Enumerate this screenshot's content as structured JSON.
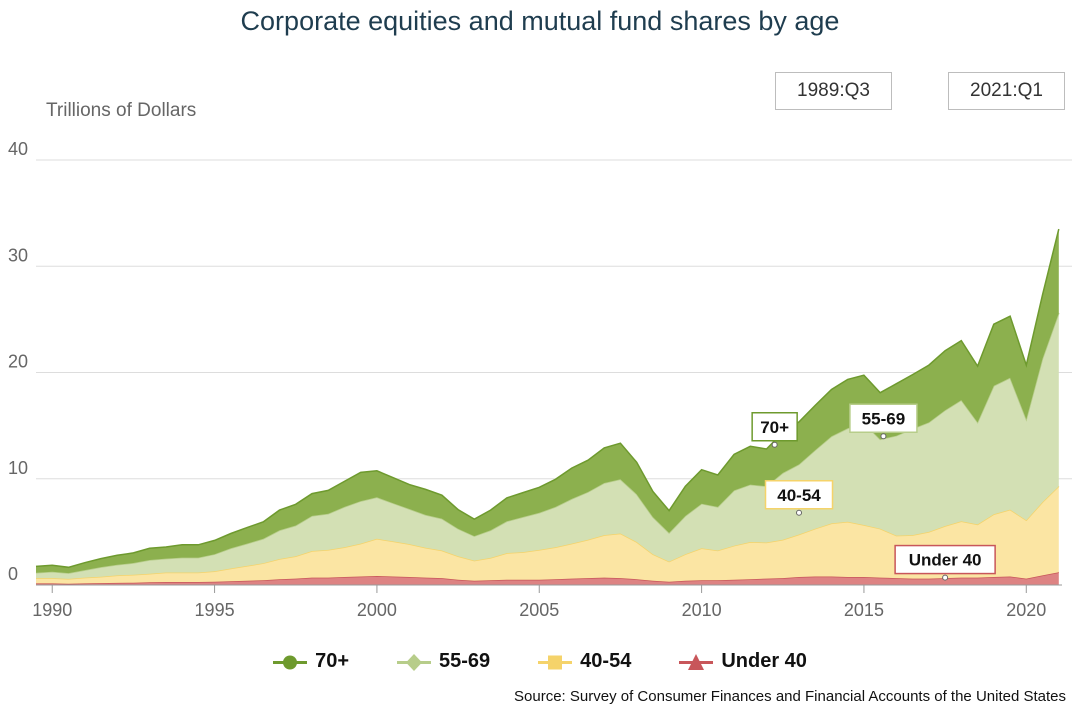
{
  "title": "Corporate equities and mutual fund shares by age",
  "range_buttons": [
    "1989:Q3",
    "2021:Q1"
  ],
  "source": "Source: Survey of Consumer Finances and Financial Accounts of the United States",
  "chart_data": {
    "type": "area",
    "stacked": true,
    "ylabel": "Trillions of Dollars",
    "ylim": [
      0,
      40
    ],
    "yticks": [
      0,
      10,
      20,
      30,
      40
    ],
    "xlim": [
      1989.5,
      2021.1
    ],
    "xticks": [
      1990,
      1995,
      2000,
      2005,
      2010,
      2015,
      2020
    ],
    "legend_position": "bottom",
    "x": [
      1989.5,
      1990.0,
      1990.5,
      1991.0,
      1991.5,
      1992.0,
      1992.5,
      1993.0,
      1993.5,
      1994.0,
      1994.5,
      1995.0,
      1995.5,
      1996.0,
      1996.5,
      1997.0,
      1997.5,
      1998.0,
      1998.5,
      1999.0,
      1999.5,
      2000.0,
      2000.5,
      2001.0,
      2001.5,
      2002.0,
      2002.5,
      2003.0,
      2003.5,
      2004.0,
      2004.5,
      2005.0,
      2005.5,
      2006.0,
      2006.5,
      2007.0,
      2007.5,
      2008.0,
      2008.5,
      2009.0,
      2009.5,
      2010.0,
      2010.5,
      2011.0,
      2011.5,
      2012.0,
      2012.5,
      2013.0,
      2013.5,
      2014.0,
      2014.5,
      2015.0,
      2015.5,
      2016.0,
      2016.5,
      2017.0,
      2017.5,
      2018.0,
      2018.5,
      2019.0,
      2019.5,
      2020.0,
      2020.5,
      2021.0
    ],
    "series": [
      {
        "name": "Under 40",
        "color": "#c8565a",
        "fill": "#dd8383",
        "values": [
          0.15,
          0.15,
          0.12,
          0.15,
          0.18,
          0.2,
          0.22,
          0.25,
          0.28,
          0.28,
          0.28,
          0.3,
          0.35,
          0.4,
          0.45,
          0.55,
          0.6,
          0.7,
          0.7,
          0.75,
          0.8,
          0.85,
          0.8,
          0.75,
          0.7,
          0.65,
          0.5,
          0.4,
          0.45,
          0.5,
          0.5,
          0.5,
          0.55,
          0.6,
          0.65,
          0.7,
          0.65,
          0.55,
          0.4,
          0.3,
          0.4,
          0.45,
          0.45,
          0.5,
          0.55,
          0.6,
          0.65,
          0.75,
          0.8,
          0.8,
          0.75,
          0.75,
          0.7,
          0.65,
          0.6,
          0.6,
          0.65,
          0.7,
          0.7,
          0.75,
          0.8,
          0.6,
          0.9,
          1.2
        ]
      },
      {
        "name": "40-54",
        "color": "#f5d36a",
        "fill": "#fbe5a3",
        "values": [
          0.5,
          0.5,
          0.45,
          0.55,
          0.6,
          0.7,
          0.75,
          0.8,
          0.9,
          0.9,
          0.9,
          1.0,
          1.2,
          1.4,
          1.6,
          1.9,
          2.1,
          2.5,
          2.6,
          2.8,
          3.1,
          3.5,
          3.3,
          3.1,
          2.8,
          2.6,
          2.2,
          1.9,
          2.1,
          2.5,
          2.6,
          2.8,
          3.0,
          3.3,
          3.6,
          4.0,
          4.2,
          3.5,
          2.5,
          1.9,
          2.5,
          3.0,
          2.8,
          3.2,
          3.5,
          3.4,
          3.6,
          4.0,
          4.5,
          5.0,
          5.2,
          4.9,
          4.6,
          4.0,
          4.1,
          4.4,
          4.9,
          5.3,
          5.0,
          5.9,
          6.3,
          5.5,
          6.9,
          8.1
        ]
      },
      {
        "name": "55-69",
        "color": "#b7cd8a",
        "fill": "#d3e0b4",
        "values": [
          0.5,
          0.6,
          0.55,
          0.7,
          0.9,
          1.0,
          1.1,
          1.3,
          1.3,
          1.4,
          1.4,
          1.6,
          1.9,
          2.1,
          2.3,
          2.7,
          2.9,
          3.3,
          3.4,
          3.8,
          4.0,
          3.9,
          3.6,
          3.3,
          3.1,
          3.0,
          2.6,
          2.3,
          2.6,
          3.0,
          3.3,
          3.5,
          3.8,
          4.2,
          4.5,
          4.9,
          5.1,
          4.5,
          3.5,
          2.7,
          3.6,
          4.2,
          4.1,
          5.2,
          5.4,
          5.3,
          6.3,
          6.6,
          7.4,
          8.2,
          8.8,
          9.6,
          8.4,
          9.4,
          10.0,
          10.3,
          10.9,
          11.4,
          9.6,
          12.1,
          12.4,
          9.5,
          13.5,
          16.3
        ]
      },
      {
        "name": "70+",
        "color": "#6e9a2e",
        "fill": "#8cb04e",
        "values": [
          0.6,
          0.6,
          0.55,
          0.7,
          0.8,
          0.9,
          0.95,
          1.1,
          1.1,
          1.2,
          1.2,
          1.3,
          1.4,
          1.5,
          1.6,
          1.9,
          2.0,
          2.1,
          2.2,
          2.4,
          2.7,
          2.5,
          2.4,
          2.3,
          2.4,
          2.2,
          1.8,
          1.6,
          1.9,
          2.2,
          2.3,
          2.4,
          2.6,
          2.9,
          3.0,
          3.3,
          3.4,
          3.0,
          2.4,
          2.1,
          2.8,
          3.2,
          3.0,
          3.4,
          3.6,
          3.5,
          3.8,
          4.0,
          4.2,
          4.4,
          4.6,
          4.5,
          4.4,
          4.9,
          5.1,
          5.4,
          5.6,
          5.6,
          5.3,
          5.8,
          5.8,
          5.1,
          6.0,
          7.9
        ]
      }
    ],
    "annotations": [
      {
        "label": "70+",
        "x": 2012.25,
        "y": 13.2,
        "border": "#6e9a2e"
      },
      {
        "label": "55-69",
        "x": 2015.6,
        "y": 14.0,
        "border": "#b7cd8a"
      },
      {
        "label": "40-54",
        "x": 2013.0,
        "y": 6.8,
        "border": "#f5d36a"
      },
      {
        "label": "Under 40",
        "x": 2017.5,
        "y": 0.7,
        "border": "#c8565a"
      }
    ]
  },
  "legend": [
    {
      "label": "70+",
      "color": "#6e9a2e",
      "shape": "circle"
    },
    {
      "label": "55-69",
      "color": "#b7cd8a",
      "shape": "diamond"
    },
    {
      "label": "40-54",
      "color": "#f5d36a",
      "shape": "square"
    },
    {
      "label": "Under 40",
      "color": "#c8565a",
      "shape": "triangle"
    }
  ]
}
